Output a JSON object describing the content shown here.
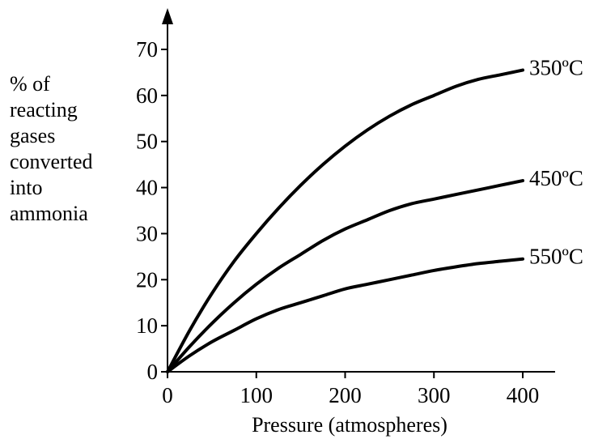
{
  "chart_data": {
    "type": "line",
    "title": "",
    "xlabel": "Pressure (atmospheres)",
    "ylabel_lines": [
      "% of",
      "reacting",
      "gases",
      "converted",
      "into",
      "ammonia"
    ],
    "xlim": [
      0,
      420
    ],
    "ylim": [
      0,
      75
    ],
    "x_ticks": [
      0,
      100,
      200,
      300,
      400
    ],
    "y_ticks": [
      0,
      10,
      20,
      30,
      40,
      50,
      60,
      70
    ],
    "grid": false,
    "legend": "none (series labelled at line ends)",
    "series": [
      {
        "name": "350ºC",
        "x": [
          0,
          25,
          50,
          75,
          100,
          125,
          150,
          175,
          200,
          225,
          250,
          275,
          300,
          325,
          350,
          375,
          400
        ],
        "y": [
          0,
          9,
          17,
          24,
          30,
          35.5,
          40.5,
          45,
          49,
          52.5,
          55.5,
          58,
          60,
          62,
          63.5,
          64.5,
          65.5
        ]
      },
      {
        "name": "450ºC",
        "x": [
          0,
          25,
          50,
          75,
          100,
          125,
          150,
          175,
          200,
          225,
          250,
          275,
          300,
          325,
          350,
          375,
          400
        ],
        "y": [
          0,
          5.5,
          10.5,
          15,
          19,
          22.5,
          25.5,
          28.5,
          31,
          33,
          35,
          36.5,
          37.5,
          38.5,
          39.5,
          40.5,
          41.5
        ]
      },
      {
        "name": "550ºC",
        "x": [
          0,
          25,
          50,
          75,
          100,
          125,
          150,
          175,
          200,
          225,
          250,
          275,
          300,
          325,
          350,
          375,
          400
        ],
        "y": [
          0,
          3.5,
          6.5,
          9,
          11.5,
          13.5,
          15,
          16.5,
          18,
          19,
          20,
          21,
          22,
          22.8,
          23.5,
          24,
          24.5
        ]
      }
    ]
  }
}
